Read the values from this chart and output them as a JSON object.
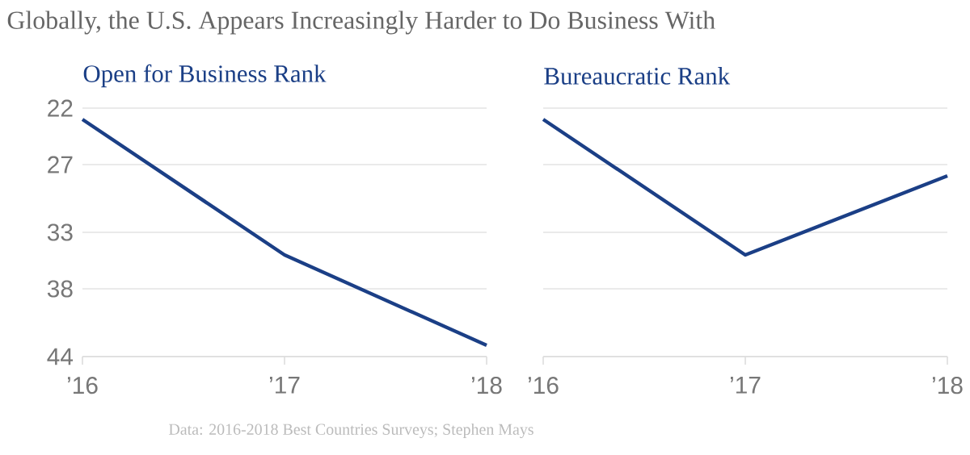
{
  "chart_data": [
    {
      "type": "line",
      "title": "Globally, the U.S. Appears Increasingly Harder to Do Business With",
      "subtitle": "Open for Business Rank",
      "categories": [
        "’16",
        "’17",
        "’18"
      ],
      "values": [
        23,
        35,
        43
      ],
      "color": "#1b3f86",
      "ylim": [
        44,
        22
      ],
      "yticks": [
        22,
        27,
        33,
        38,
        44
      ],
      "grid": "y",
      "annotations": [
        "Data: 2016-2018 Best Countries Surveys; Stephen Mays"
      ]
    },
    {
      "type": "line",
      "subtitle": "Bureaucratic Rank",
      "categories": [
        "’16",
        "’17",
        "’18"
      ],
      "values": [
        23,
        35,
        28
      ],
      "color": "#1b3f86",
      "ylim": [
        44,
        22
      ],
      "yticks": [
        22,
        27,
        33,
        38,
        44
      ],
      "grid": "y",
      "tick_labels": "x"
    }
  ]
}
